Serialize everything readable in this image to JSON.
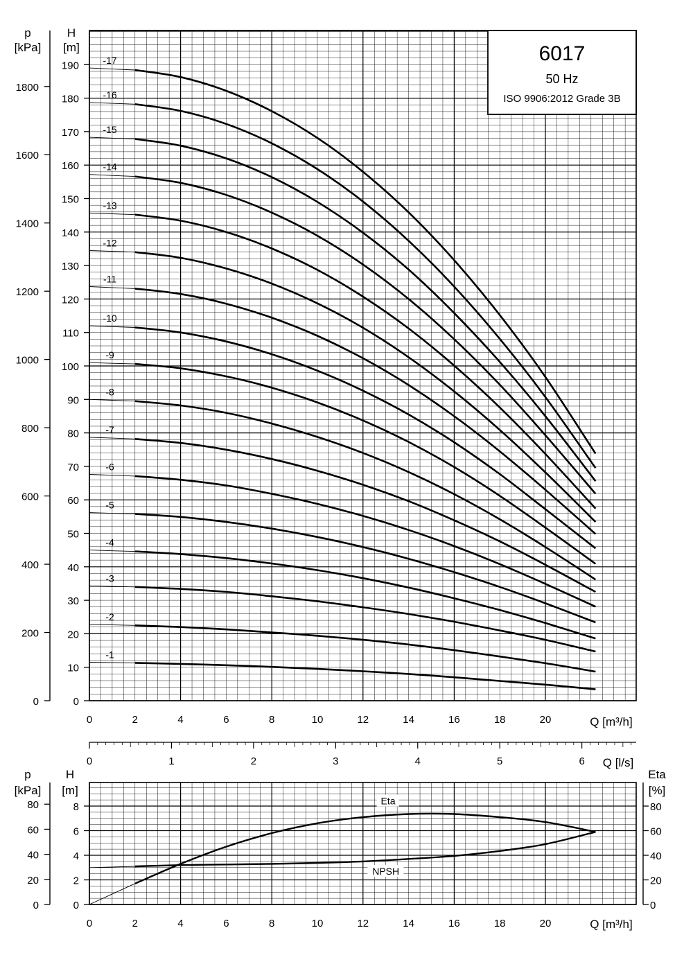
{
  "title_box": {
    "model": "6017",
    "frequency": "50 Hz",
    "standard": "ISO 9906:2012 Grade 3B"
  },
  "axes": {
    "pressure_label": "p",
    "pressure_unit": "[kPa]",
    "head_label": "H",
    "head_unit": "[m]",
    "flow_label": "Q [m³/h]",
    "flow_ls_label": "Q [l/s]",
    "eta_label": "Eta",
    "eta_unit": "[%]"
  },
  "chart_data": [
    {
      "type": "line",
      "title": "6017",
      "subtitle": "50 Hz — ISO 9906:2012 Grade 3B",
      "xlabel": "Q [m³/h]",
      "ylabel": "H [m]",
      "y2label": "p [kPa]",
      "xlim": [
        0,
        24
      ],
      "ylim": [
        0,
        200
      ],
      "y2lim": [
        0,
        1960
      ],
      "grid": true,
      "x_ticks": [
        0,
        2,
        4,
        6,
        8,
        10,
        12,
        14,
        16,
        18,
        20
      ],
      "y_ticks": [
        0,
        10,
        20,
        30,
        40,
        50,
        60,
        70,
        80,
        90,
        100,
        110,
        120,
        130,
        140,
        150,
        160,
        170,
        180,
        190
      ],
      "y2_ticks": [
        0,
        200,
        400,
        600,
        800,
        1000,
        1200,
        1400,
        1600,
        1800
      ],
      "x": [
        0,
        2,
        4,
        6,
        8,
        10,
        12,
        14,
        16,
        18,
        20,
        22.2
      ],
      "series": [
        {
          "name": "-1",
          "values": [
            11.5,
            11.3,
            11.0,
            10.6,
            10.1,
            9.5,
            8.8,
            8.0,
            7.0,
            5.9,
            4.8,
            3.4
          ]
        },
        {
          "name": "-2",
          "values": [
            22.8,
            22.5,
            22.0,
            21.3,
            20.4,
            19.4,
            18.2,
            16.8,
            15.1,
            13.2,
            11.2,
            8.7
          ]
        },
        {
          "name": "-3",
          "values": [
            34.3,
            34.0,
            33.4,
            32.5,
            31.2,
            29.7,
            27.9,
            25.9,
            23.6,
            21.0,
            18.2,
            14.7
          ]
        },
        {
          "name": "-4",
          "values": [
            45.0,
            44.6,
            43.8,
            42.6,
            41.0,
            39.0,
            36.6,
            33.8,
            30.6,
            27.1,
            23.2,
            18.6
          ]
        },
        {
          "name": "-5",
          "values": [
            56.2,
            55.8,
            54.9,
            53.4,
            51.4,
            48.9,
            45.9,
            42.4,
            38.4,
            34.0,
            29.1,
            23.4
          ]
        },
        {
          "name": "-6",
          "values": [
            67.6,
            67.1,
            66.0,
            64.3,
            61.8,
            58.8,
            55.2,
            51.0,
            46.2,
            40.8,
            34.9,
            28.1
          ]
        },
        {
          "name": "-7",
          "values": [
            78.7,
            78.2,
            77.0,
            75.0,
            72.2,
            68.7,
            64.5,
            59.6,
            53.9,
            47.6,
            40.6,
            32.5
          ]
        },
        {
          "name": "-8",
          "values": [
            90.0,
            89.5,
            88.2,
            86.0,
            82.8,
            78.8,
            74.0,
            68.3,
            61.7,
            54.2,
            45.9,
            36.2
          ]
        },
        {
          "name": "-9",
          "values": [
            101.0,
            100.6,
            99.3,
            96.9,
            93.5,
            89.1,
            83.7,
            77.3,
            69.8,
            61.2,
            51.7,
            40.9
          ]
        },
        {
          "name": "-10",
          "values": [
            112.0,
            111.5,
            110.0,
            107.3,
            103.5,
            98.6,
            92.6,
            85.5,
            77.2,
            67.7,
            57.2,
            45.5
          ]
        },
        {
          "name": "-11",
          "values": [
            123.7,
            123.1,
            121.5,
            118.6,
            114.4,
            109.0,
            102.3,
            94.3,
            85.0,
            74.5,
            63.0,
            49.8
          ]
        },
        {
          "name": "-12",
          "values": [
            134.5,
            134.0,
            132.3,
            129.1,
            124.6,
            118.7,
            111.4,
            102.6,
            92.4,
            80.9,
            68.2,
            53.4
          ]
        },
        {
          "name": "-13",
          "values": [
            145.7,
            145.2,
            143.4,
            140.0,
            135.1,
            128.7,
            120.7,
            111.2,
            100.1,
            87.6,
            73.7,
            57.4
          ]
        },
        {
          "name": "-14",
          "values": [
            157.2,
            156.6,
            154.7,
            151.1,
            145.8,
            138.9,
            130.3,
            120.0,
            108.0,
            94.4,
            79.3,
            61.8
          ]
        },
        {
          "name": "-15",
          "values": [
            168.3,
            167.8,
            165.8,
            162.0,
            156.4,
            149.0,
            139.8,
            128.8,
            115.8,
            101.2,
            85.0,
            65.6
          ]
        },
        {
          "name": "-16",
          "values": [
            178.7,
            178.2,
            176.2,
            172.3,
            166.5,
            158.8,
            149.1,
            137.4,
            123.7,
            108.1,
            90.7,
            69.5
          ]
        },
        {
          "name": "-17",
          "values": [
            189.0,
            188.4,
            186.3,
            182.2,
            176.1,
            168.1,
            158.0,
            145.9,
            131.6,
            115.2,
            96.7,
            73.8
          ]
        }
      ]
    },
    {
      "type": "line",
      "xlabel": "Q [m³/h]",
      "ylabel": "H [m]",
      "y2label": "p [kPa]",
      "y3label": "Eta [%]",
      "xlim": [
        0,
        24
      ],
      "ylim": [
        0,
        9
      ],
      "grid": true,
      "x_ticks": [
        0,
        2,
        4,
        6,
        8,
        10,
        12,
        14,
        16,
        18,
        20
      ],
      "y_ticks": [
        0,
        2,
        4,
        6,
        8
      ],
      "y2_ticks": [
        0,
        20,
        40,
        60,
        80
      ],
      "eta_ticks": [
        0,
        20,
        40,
        60,
        80
      ],
      "series": [
        {
          "name": "Eta",
          "x": [
            0,
            2,
            4,
            6,
            8,
            10,
            12,
            14,
            16,
            18,
            20,
            22.2
          ],
          "values": [
            0,
            17,
            33,
            47,
            58,
            66,
            71,
            73.5,
            73.5,
            71,
            67,
            59
          ]
        },
        {
          "name": "NPSH",
          "x": [
            0,
            2,
            4,
            6,
            8,
            10,
            12,
            14,
            16,
            18,
            20,
            22.2
          ],
          "values": [
            3.0,
            3.1,
            3.2,
            3.25,
            3.3,
            3.38,
            3.5,
            3.7,
            3.95,
            4.35,
            4.9,
            5.9
          ]
        }
      ]
    },
    {
      "type": "line",
      "xlabel": "Q [l/s]",
      "xlim": [
        0,
        6.667
      ],
      "x_ticks": [
        0,
        1,
        2,
        3,
        4,
        5,
        6
      ]
    }
  ]
}
